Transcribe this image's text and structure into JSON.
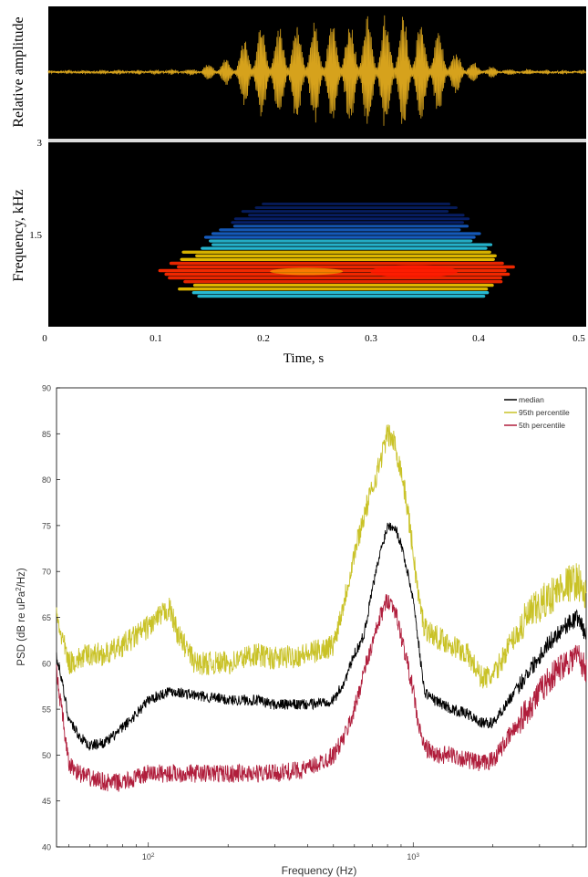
{
  "chart_data": [
    {
      "type": "line",
      "panel": "waveform",
      "ylabel": "Relative amplitude",
      "background": "#000000",
      "line_color": "#d6a21c",
      "xlim": [
        0,
        0.5
      ],
      "envelope": {
        "t": [
          0.0,
          0.13,
          0.15,
          0.17,
          0.18,
          0.19,
          0.22,
          0.26,
          0.3,
          0.32,
          0.34,
          0.36,
          0.37,
          0.38,
          0.4,
          0.43,
          0.5
        ],
        "amp": [
          0.02,
          0.04,
          0.15,
          0.25,
          0.5,
          0.8,
          0.85,
          0.9,
          1.0,
          1.0,
          0.95,
          0.8,
          0.6,
          0.35,
          0.12,
          0.05,
          0.02
        ]
      }
    },
    {
      "type": "heatmap",
      "panel": "spectrogram",
      "ylabel": "Frequency, kHz",
      "xlabel": "Time, s",
      "xlim": [
        0,
        0.5
      ],
      "ylim": [
        0,
        3
      ],
      "x_ticks": [
        "0",
        "0.1",
        "0.2",
        "0.3",
        "0.4",
        "0.5"
      ],
      "x_tick_values": [
        0,
        0.1,
        0.2,
        0.3,
        0.4,
        0.5
      ],
      "y_ticks": [
        "3",
        "1.5"
      ],
      "y_tick_values": [
        3,
        1.5
      ],
      "colormap": "jet",
      "energy_start_s": 0.1,
      "energy_end_s": 0.44,
      "peak_time_s": 0.34,
      "harmonic_band_khz": [
        0.5,
        2.0
      ],
      "peak_frequency_khz": 0.9
    },
    {
      "type": "line",
      "panel": "psd",
      "xlabel": "Frequency (Hz)",
      "ylabel_parts": {
        "pre": "PSD (dB re uPa",
        "sup": "2",
        "post": "/Hz)"
      },
      "xscale": "log",
      "xlim": [
        45,
        4500
      ],
      "ylim": [
        40,
        90
      ],
      "y_ticks": [
        "90",
        "85",
        "80",
        "75",
        "70",
        "65",
        "60",
        "55",
        "50",
        "45",
        "40"
      ],
      "y_tick_values": [
        90,
        85,
        80,
        75,
        70,
        65,
        60,
        55,
        50,
        45,
        40
      ],
      "x_ticks": [
        {
          "base": "10",
          "exp": "2",
          "value": 100
        },
        {
          "base": "10",
          "exp": "3",
          "value": 1000
        }
      ],
      "legend_position": "top-right",
      "series": [
        {
          "name": "median",
          "color": "#000000",
          "noise": 0.6,
          "freq": [
            45,
            50,
            55,
            60,
            70,
            80,
            100,
            120,
            150,
            200,
            250,
            300,
            400,
            500,
            550,
            600,
            650,
            700,
            750,
            800,
            850,
            900,
            950,
            1000,
            1050,
            1100,
            1200,
            1400,
            1600,
            1800,
            2000,
            2300,
            2700,
            3200,
            3700,
            4200,
            4500
          ],
          "psd": [
            61,
            54,
            52,
            51,
            51.5,
            53,
            56,
            57,
            56.5,
            56,
            56,
            55.5,
            55.5,
            56,
            58,
            61,
            63,
            68,
            72,
            75,
            75,
            73,
            70,
            67,
            62,
            57,
            56,
            55,
            54.5,
            53.5,
            53.5,
            56,
            59,
            62,
            64,
            65,
            63
          ]
        },
        {
          "name": "95th percentile",
          "color": "#c9c227",
          "noise": 1.3,
          "freq": [
            45,
            50,
            60,
            70,
            80,
            100,
            120,
            130,
            150,
            200,
            250,
            300,
            400,
            500,
            550,
            600,
            650,
            700,
            750,
            800,
            850,
            900,
            950,
            1000,
            1050,
            1100,
            1200,
            1400,
            1600,
            1800,
            2000,
            2300,
            2700,
            3200,
            3700,
            4200,
            4500
          ],
          "psd": [
            65,
            60,
            61,
            61,
            62,
            64,
            66,
            63,
            60,
            60,
            61,
            60.5,
            61,
            62,
            67,
            72,
            76,
            79,
            82,
            85,
            84,
            81,
            77,
            72,
            67,
            64,
            63,
            62,
            61,
            58.5,
            58.5,
            62,
            65,
            67,
            68.5,
            69,
            67
          ]
        },
        {
          "name": "5th percentile",
          "color": "#b01e3c",
          "noise": 1.0,
          "freq": [
            45,
            50,
            55,
            60,
            70,
            80,
            100,
            120,
            150,
            200,
            250,
            300,
            400,
            500,
            550,
            600,
            650,
            700,
            750,
            800,
            850,
            900,
            950,
            1000,
            1050,
            1100,
            1200,
            1400,
            1600,
            1800,
            2000,
            2300,
            2700,
            3200,
            3700,
            4200,
            4500
          ],
          "psd": [
            59,
            49,
            48,
            47.5,
            47,
            47,
            48,
            48,
            48,
            48,
            48,
            48,
            48.5,
            50,
            52,
            55,
            59,
            62,
            65,
            67,
            66,
            63,
            60,
            57,
            53,
            51,
            50,
            50,
            49.5,
            49,
            49.5,
            52,
            55,
            58,
            60,
            61,
            59
          ]
        }
      ]
    }
  ]
}
